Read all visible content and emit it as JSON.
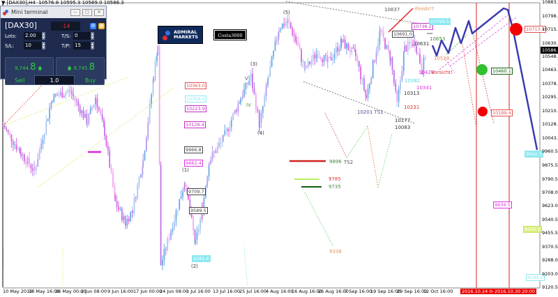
{
  "header": {
    "symbol_timeframe": "[DAX30],H4",
    "ohlc": "10576.8 10595.3 10569.0 10586.3"
  },
  "mini_terminal": {
    "title": "Mini terminal",
    "symbol": "[DAX30]",
    "profit": "-14",
    "lots_label": "Lots:",
    "lots_value": "2.00",
    "ts_label": "T/S:",
    "ts_value": "0",
    "sl_label": "S/L:",
    "sl_value": "10",
    "tp_label": "T/P:",
    "tp_value": "15",
    "sell_price_main": "9,744.",
    "sell_price_big": "8",
    "buy_price_main": "9,745.",
    "buy_price_big": "8",
    "sell_label": "Sell",
    "buy_label": "Buy",
    "volume": "1.0"
  },
  "logo": {
    "line1": "ADMIRAL",
    "line2": "MARKETS"
  },
  "watermark": "Costa3000",
  "colors": {
    "bull": "#6aa8e8",
    "bear": "#e060e0",
    "projection": "#3c3cb0",
    "current_price_bg": "#000000",
    "vline": "#e00000"
  },
  "chart_data": {
    "type": "candlestick",
    "title": "[DAX30],H4",
    "ylim": [
      9120.5,
      10883.0
    ],
    "y_ticks": [
      "10883.0",
      "10798.0",
      "10715.5",
      "10630.5",
      "10548.0",
      "10463.0",
      "10378.0",
      "10295.5",
      "10210.5",
      "10128.0",
      "10043.0",
      "9960.5",
      "9875.5",
      "9790.5",
      "9708.0",
      "9623.0",
      "9540.5",
      "9455.5",
      "9370.5",
      "9288.0",
      "9203.0",
      "9120.5"
    ],
    "current_price": "10586.3",
    "x_ticks": [
      {
        "label": "10 May 2016",
        "t": "2016-05-10T00:00"
      },
      {
        "label": "18 May 16:00",
        "t": "2016-05-18T16:00"
      },
      {
        "label": "26 May 00:00",
        "t": "2016-05-26T00:00"
      },
      {
        "label": "2 Jun 08:00",
        "t": "2016-06-02T08:00"
      },
      {
        "label": "9 Jun 16:00",
        "t": "2016-06-09T16:00"
      },
      {
        "label": "17 Jun 00:00",
        "t": "2016-06-17T00:00"
      },
      {
        "label": "24 Jun 08:00",
        "t": "2016-06-24T08:00"
      },
      {
        "label": "1 Jul 16:00",
        "t": "2016-07-01T16:00"
      },
      {
        "label": "13 Jul 16:00",
        "t": "2016-07-13T16:00"
      },
      {
        "label": "25 Jul 16:00",
        "t": "2016-07-25T16:00"
      },
      {
        "label": "4 Aug 16:00",
        "t": "2016-08-04T16:00"
      },
      {
        "label": "16 Aug 16:00",
        "t": "2016-08-16T16:00"
      },
      {
        "label": "26 Aug 16:00",
        "t": "2016-08-26T16:00"
      },
      {
        "label": "7 Sep 16:00",
        "t": "2016-09-07T16:00"
      },
      {
        "label": "19 Sep 16:00",
        "t": "2016-09-19T16:00"
      },
      {
        "label": "29 Sep 16:00",
        "t": "2016-09-29T16:00"
      },
      {
        "label": "12 Oct 16:00",
        "t": "2016-10-12T16:00"
      }
    ],
    "vline_labels": [
      "2016.10.24 04:00",
      "2016.10.30 20:00"
    ],
    "approx_close_path": [
      {
        "t": "2016-05-10T08:00",
        "price": 10120
      },
      {
        "t": "2016-05-16T08:00",
        "price": 9948
      },
      {
        "t": "2016-05-20T12:00",
        "price": 9840
      },
      {
        "t": "2016-05-25T10:00",
        "price": 10293
      },
      {
        "t": "2016-05-30T10:00",
        "price": 10336
      },
      {
        "t": "2016-06-04T06:00",
        "price": 10142
      },
      {
        "t": "2016-06-06T14:00",
        "price": 10293
      },
      {
        "t": "2016-06-09T02:00",
        "price": 10077
      },
      {
        "t": "2016-06-12T02:00",
        "price": 9646
      },
      {
        "t": "2016-06-15T00:00",
        "price": 9517
      },
      {
        "t": "2016-06-17T00:00",
        "price": 9603
      },
      {
        "t": "2016-06-19T22:00",
        "price": 9905
      },
      {
        "t": "2016-06-22T20:00",
        "price": 10422
      },
      {
        "t": "2016-06-24T00:00",
        "price": 10616
      },
      {
        "t": "2016-06-24T20:00",
        "price": 9259
      },
      {
        "t": "2016-06-27T16:00",
        "price": 9474
      },
      {
        "t": "2016-07-01T12:00",
        "price": 9776
      },
      {
        "t": "2016-07-06T02:00",
        "price": 9388
      },
      {
        "t": "2016-07-09T06:00",
        "price": 9603
      },
      {
        "t": "2016-07-12T08:00",
        "price": 9905
      },
      {
        "t": "2016-07-18T16:00",
        "price": 10034
      },
      {
        "t": "2016-07-26T12:00",
        "price": 10293
      },
      {
        "t": "2016-07-30T08:00",
        "price": 10422
      },
      {
        "t": "2016-08-02T14:00",
        "price": 10120
      },
      {
        "t": "2016-08-06T06:00",
        "price": 10422
      },
      {
        "t": "2016-08-11T04:00",
        "price": 10724
      },
      {
        "t": "2016-08-15T02:00",
        "price": 10767
      },
      {
        "t": "2016-08-18T18:00",
        "price": 10638
      },
      {
        "t": "2016-08-21T22:00",
        "price": 10465
      },
      {
        "t": "2016-08-26T16:00",
        "price": 10573
      },
      {
        "t": "2016-08-31T08:00",
        "price": 10508
      },
      {
        "t": "2016-09-06T16:00",
        "price": 10638
      },
      {
        "t": "2016-09-13T04:00",
        "price": 10551
      },
      {
        "t": "2016-09-18T02:00",
        "price": 10293
      },
      {
        "t": "2016-09-23T14:00",
        "price": 10702
      },
      {
        "t": "2016-09-27T14:00",
        "price": 10530
      },
      {
        "t": "2016-09-30T02:00",
        "price": 10250
      },
      {
        "t": "2016-10-03T18:00",
        "price": 10595
      },
      {
        "t": "2016-10-08T20:00",
        "price": 10638
      },
      {
        "t": "2016-10-12T08:00",
        "price": 10465
      },
      {
        "t": "2016-10-14T16:00",
        "price": 10586.3
      }
    ],
    "price_boxes": [
      "10363.0",
      "10304.0",
      "10223.9",
      "10129.4",
      "9966.8",
      "9882.4",
      "9709.7",
      "9589.5",
      "9281.6",
      "10691.0",
      "10736.2",
      "10769.5",
      "10713.4",
      "10460.1",
      "10199.4",
      "9942.3",
      "9634.5",
      "9455.5",
      "9185.0"
    ],
    "wave_labels": [
      "(1)",
      "(2)",
      "(3)",
      "(4)",
      "(5)",
      "V",
      "IV"
    ],
    "annotations": [
      "10837",
      "Finish??",
      "10631",
      "10653",
      "10528",
      "10428",
      "Vorsicht!",
      "10382",
      "10341",
      "10313",
      "10231",
      "10201 TS1",
      "10177",
      "10083",
      "9896",
      "TS2",
      "9785",
      "9735",
      "9338"
    ],
    "grid": false
  }
}
